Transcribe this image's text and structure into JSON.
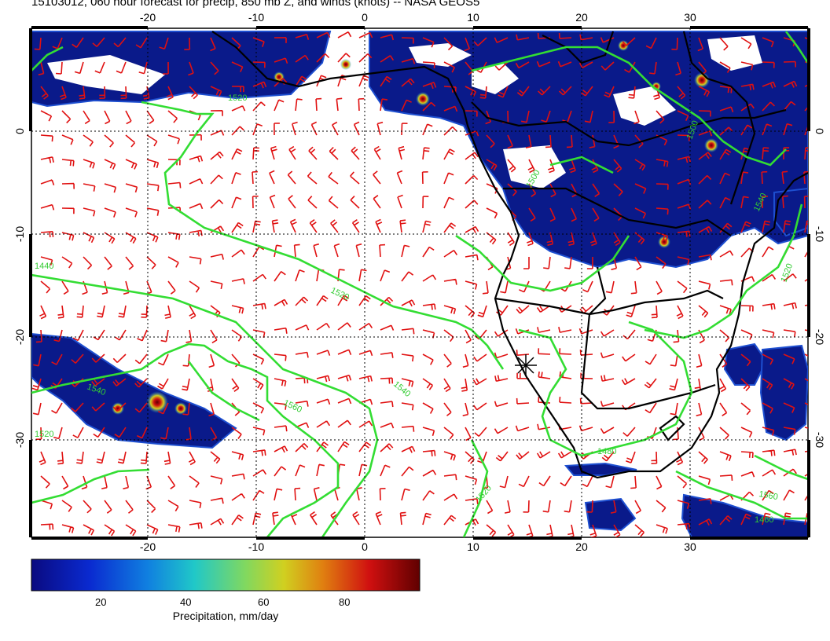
{
  "title": "15103012, 060 hour forecast for precip, 850 mb Z, and winds (knots) -- NASA GEOS5",
  "map": {
    "lon_ticks": [
      "-20",
      "-10",
      "0",
      "10",
      "20",
      "30"
    ],
    "lat_ticks": [
      "0",
      "-10",
      "-20",
      "-30"
    ],
    "contour_labels": [
      "1520",
      "1520",
      "1540",
      "1540",
      "1560",
      "1500",
      "1500",
      "1480",
      "1520",
      "1540",
      "1560",
      "1460",
      "1440",
      "1520",
      "1520"
    ],
    "colors": {
      "precip_dark": "#0a1a8a",
      "precip_mid": "#1e4fd0",
      "contour": "#33dd33",
      "wind": "#e01010",
      "coast": "#000000"
    }
  },
  "colorbar": {
    "labels": [
      "20",
      "40",
      "60",
      "80"
    ],
    "title": "Precipitation, mm/day"
  }
}
